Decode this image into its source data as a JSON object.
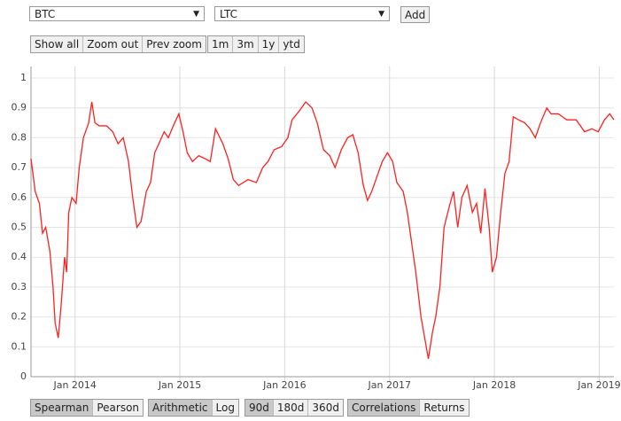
{
  "controls": {
    "select_1": "BTC",
    "select_2": "LTC",
    "add": "Add",
    "zoom_buttons": [
      "Show all",
      "Zoom out",
      "Prev zoom"
    ],
    "range_buttons": [
      "1m",
      "3m",
      "1y",
      "ytd"
    ]
  },
  "chart_data": {
    "type": "line",
    "x": [
      2013.58,
      2013.62,
      2013.66,
      2013.69,
      2013.72,
      2013.76,
      2013.79,
      2013.81,
      2013.84,
      2013.87,
      2013.9,
      2013.92,
      2013.94,
      2013.97,
      2014.01,
      2014.04,
      2014.08,
      2014.13,
      2014.16,
      2014.19,
      2014.23,
      2014.3,
      2014.36,
      2014.41,
      2014.46,
      2014.51,
      2014.55,
      2014.59,
      2014.63,
      2014.68,
      2014.72,
      2014.76,
      2014.8,
      2014.85,
      2014.89,
      2014.95,
      2014.99,
      2015.03,
      2015.07,
      2015.12,
      2015.18,
      2015.24,
      2015.29,
      2015.34,
      2015.41,
      2015.46,
      2015.51,
      2015.56,
      2015.65,
      2015.73,
      2015.79,
      2015.84,
      2015.9,
      2015.97,
      2016.03,
      2016.07,
      2016.14,
      2016.2,
      2016.26,
      2016.31,
      2016.37,
      2016.43,
      2016.48,
      2016.54,
      2016.6,
      2016.65,
      2016.7,
      2016.75,
      2016.79,
      2016.83,
      2016.87,
      2016.93,
      2016.98,
      2017.03,
      2017.07,
      2017.13,
      2017.17,
      2017.21,
      2017.25,
      2017.3,
      2017.34,
      2017.37,
      2017.41,
      2017.44,
      2017.48,
      2017.52,
      2017.57,
      2017.61,
      2017.65,
      2017.69,
      2017.74,
      2017.79,
      2017.83,
      2017.87,
      2017.91,
      2017.95,
      2017.98,
      2018.02,
      2018.06,
      2018.1,
      2018.14,
      2018.18,
      2018.23,
      2018.29,
      2018.34,
      2018.39,
      2018.44,
      2018.5,
      2018.54,
      2018.61,
      2018.69,
      2018.78,
      2018.86,
      2018.93,
      2018.99,
      2019.05,
      2019.1,
      2019.14
    ],
    "series": [
      {
        "color": "#ff2020",
        "values": [
          0.73,
          0.62,
          0.58,
          0.48,
          0.5,
          0.42,
          0.3,
          0.18,
          0.13,
          0.25,
          0.4,
          0.35,
          0.55,
          0.6,
          0.58,
          0.7,
          0.8,
          0.85,
          0.92,
          0.85,
          0.84,
          0.84,
          0.82,
          0.78,
          0.8,
          0.72,
          0.6,
          0.5,
          0.52,
          0.62,
          0.65,
          0.75,
          0.78,
          0.82,
          0.8,
          0.85,
          0.88,
          0.82,
          0.75,
          0.72,
          0.74,
          0.73,
          0.72,
          0.83,
          0.78,
          0.73,
          0.66,
          0.64,
          0.66,
          0.65,
          0.7,
          0.72,
          0.76,
          0.77,
          0.8,
          0.86,
          0.89,
          0.92,
          0.9,
          0.85,
          0.76,
          0.74,
          0.7,
          0.76,
          0.8,
          0.81,
          0.75,
          0.64,
          0.59,
          0.62,
          0.66,
          0.72,
          0.75,
          0.72,
          0.65,
          0.62,
          0.55,
          0.45,
          0.35,
          0.2,
          0.12,
          0.06,
          0.15,
          0.2,
          0.3,
          0.5,
          0.57,
          0.62,
          0.5,
          0.6,
          0.64,
          0.55,
          0.58,
          0.48,
          0.63,
          0.5,
          0.35,
          0.4,
          0.55,
          0.68,
          0.72,
          0.87,
          0.86,
          0.85,
          0.83,
          0.8,
          0.85,
          0.9,
          0.88,
          0.88,
          0.86,
          0.86,
          0.82,
          0.83,
          0.82,
          0.86,
          0.88,
          0.86
        ]
      }
    ],
    "xlim": [
      2013.58,
      2019.14
    ],
    "ylim": [
      0,
      1
    ],
    "xticks": [
      {
        "value": 2014,
        "label": "Jan 2014"
      },
      {
        "value": 2015,
        "label": "Jan 2015"
      },
      {
        "value": 2016,
        "label": "Jan 2016"
      },
      {
        "value": 2017,
        "label": "Jan 2017"
      },
      {
        "value": 2018,
        "label": "Jan 2018"
      },
      {
        "value": 2019,
        "label": "Jan 2019"
      }
    ],
    "yticks": [
      0,
      0.1,
      0.2,
      0.3,
      0.4,
      0.5,
      0.6,
      0.7,
      0.8,
      0.9,
      1
    ],
    "grid": true
  },
  "bottom_controls": {
    "method": [
      "Spearman",
      "Pearson"
    ],
    "scale": [
      "Arithmetic",
      "Log"
    ],
    "window": [
      "90d",
      "180d",
      "360d"
    ],
    "view": [
      "Correlations",
      "Returns"
    ]
  }
}
